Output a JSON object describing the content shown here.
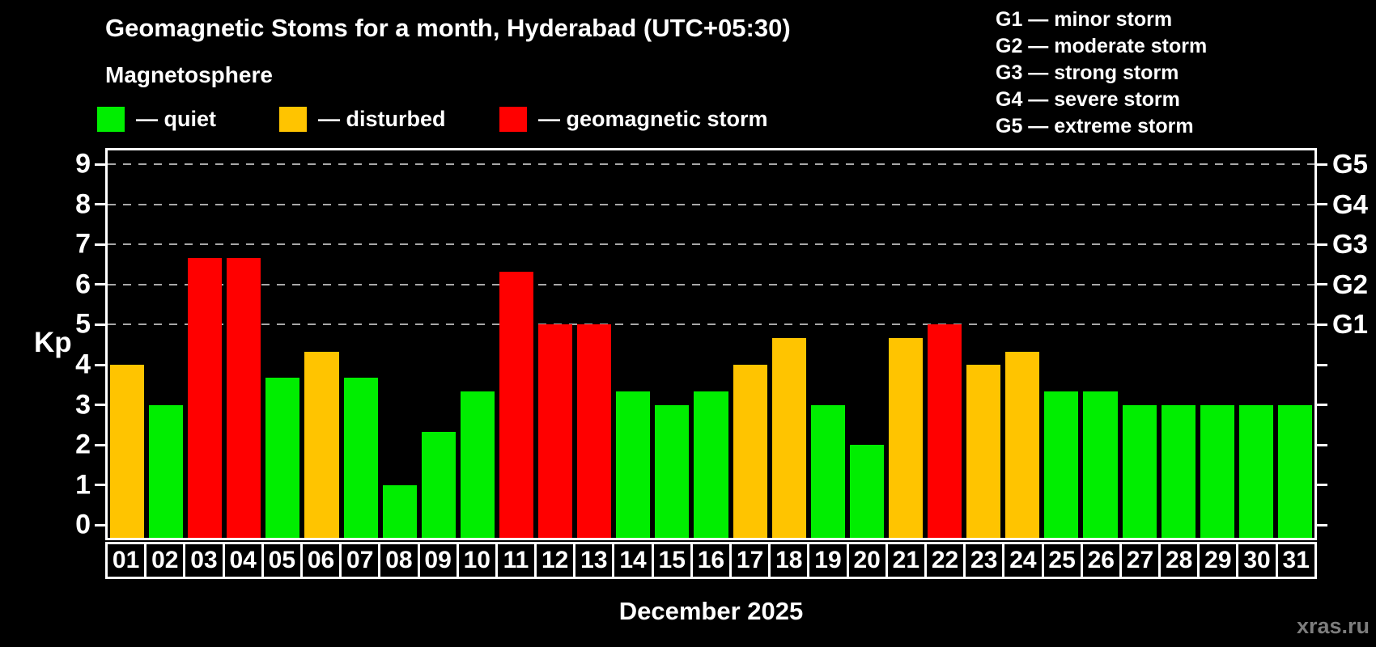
{
  "header": {
    "title": "Geomagnetic Stoms for a month, Hyderabad (UTC+05:30)",
    "subtitle": "Magnetosphere"
  },
  "legend": {
    "items": [
      {
        "id": "quiet",
        "label": "— quiet",
        "color": "#00ee00"
      },
      {
        "id": "disturbed",
        "label": "— disturbed",
        "color": "#ffc400"
      },
      {
        "id": "storm",
        "label": "— geomagnetic storm",
        "color": "#ff0000"
      }
    ]
  },
  "storm_scale_legend": {
    "items": [
      {
        "id": "g1",
        "label": "G1 — minor storm"
      },
      {
        "id": "g2",
        "label": "G2 — moderate storm"
      },
      {
        "id": "g3",
        "label": "G3 — strong storm"
      },
      {
        "id": "g4",
        "label": "G4 — severe storm"
      },
      {
        "id": "g5",
        "label": "G5 — extreme storm"
      }
    ]
  },
  "chart_data": {
    "type": "bar",
    "title": "Geomagnetic Stoms for a month, Hyderabad (UTC+05:30)",
    "xlabel": "December 2025",
    "ylabel": "Kp",
    "ylim": [
      0,
      9
    ],
    "yticks": [
      0,
      1,
      2,
      3,
      4,
      5,
      6,
      7,
      8,
      9
    ],
    "gridlines_at": [
      5,
      6,
      7,
      8,
      9
    ],
    "grid": "horizontal dashed lines at storm levels G1–G5",
    "right_axis_labels": [
      {
        "label": "G1",
        "value": 5
      },
      {
        "label": "G2",
        "value": 6
      },
      {
        "label": "G3",
        "value": 7
      },
      {
        "label": "G4",
        "value": 8
      },
      {
        "label": "G5",
        "value": 9
      }
    ],
    "categories": [
      "01",
      "02",
      "03",
      "04",
      "05",
      "06",
      "07",
      "08",
      "09",
      "10",
      "11",
      "12",
      "13",
      "14",
      "15",
      "16",
      "17",
      "18",
      "19",
      "20",
      "21",
      "22",
      "23",
      "24",
      "25",
      "26",
      "27",
      "28",
      "29",
      "30",
      "31"
    ],
    "values": [
      4.0,
      3.0,
      6.67,
      6.67,
      3.67,
      4.33,
      3.67,
      1.0,
      2.33,
      3.33,
      6.33,
      5.0,
      5.0,
      3.33,
      3.0,
      3.33,
      4.0,
      4.67,
      3.0,
      2.0,
      4.67,
      5.0,
      4.0,
      4.33,
      3.33,
      3.33,
      3.0,
      3.0,
      3.0,
      3.0,
      3.0
    ],
    "statuses": [
      "disturbed",
      "quiet",
      "storm",
      "storm",
      "quiet",
      "disturbed",
      "quiet",
      "quiet",
      "quiet",
      "quiet",
      "storm",
      "storm",
      "storm",
      "quiet",
      "quiet",
      "quiet",
      "disturbed",
      "disturbed",
      "quiet",
      "quiet",
      "disturbed",
      "storm",
      "disturbed",
      "disturbed",
      "quiet",
      "quiet",
      "quiet",
      "quiet",
      "quiet",
      "quiet",
      "quiet"
    ],
    "status_colors": {
      "quiet": "#00ee00",
      "disturbed": "#ffc400",
      "storm": "#ff0000"
    },
    "legend_position": "top"
  },
  "footer": {
    "xaxis_title": "December 2025",
    "watermark": "xras.ru"
  }
}
